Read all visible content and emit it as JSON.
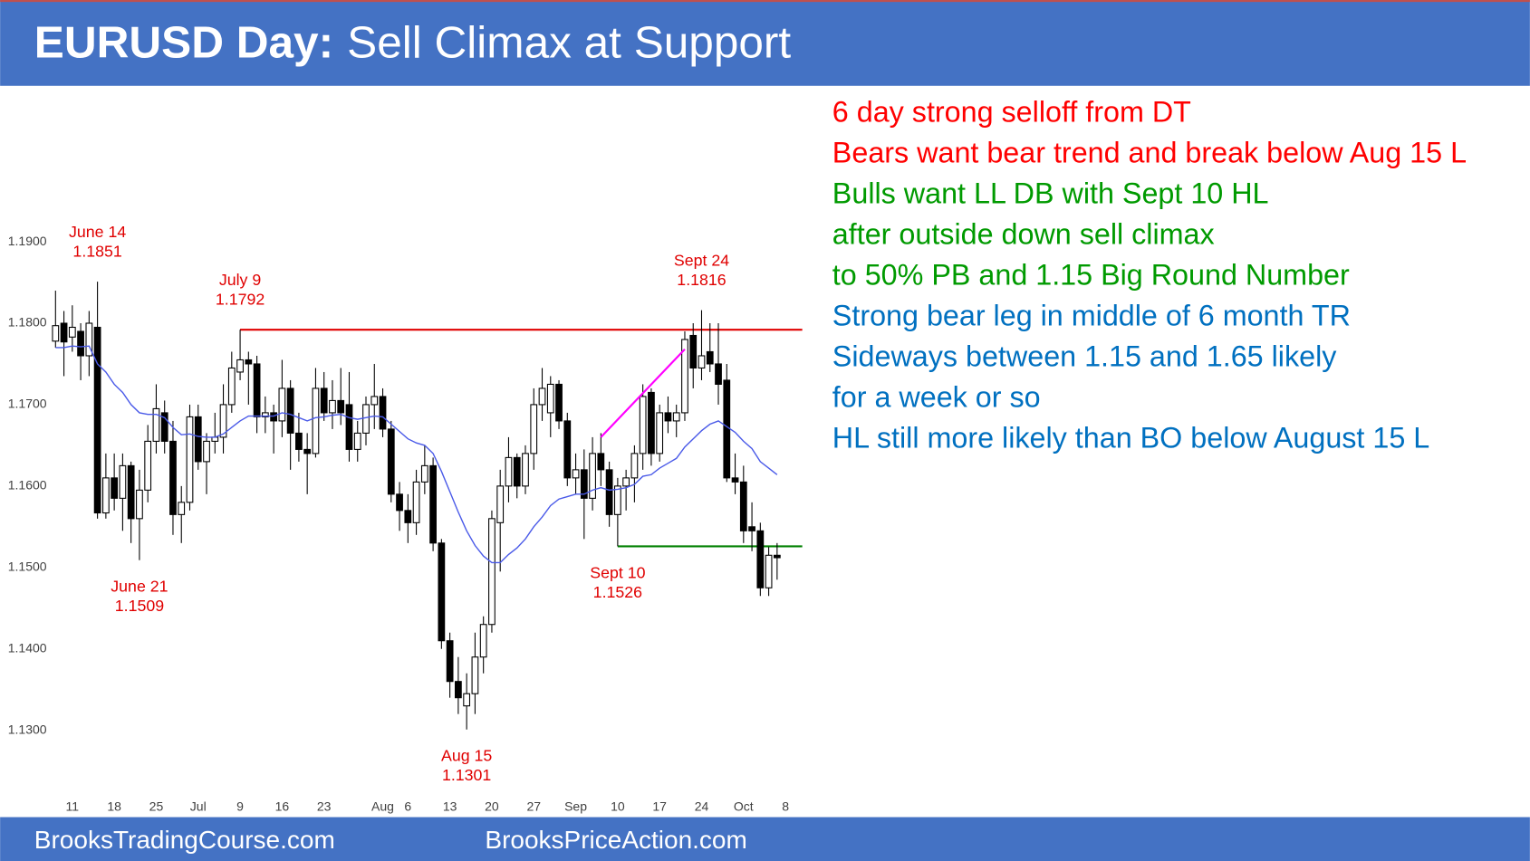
{
  "chart_data": {
    "type": "candlestick",
    "title_bold": "EURUSD Day:",
    "title": "Sell Climax at Support",
    "x": [
      0,
      1,
      2,
      3,
      4,
      5,
      6,
      7,
      8,
      9,
      10,
      11,
      12,
      13,
      14,
      15,
      16,
      17,
      18,
      19,
      20,
      21,
      22,
      23,
      24,
      25,
      26,
      27,
      28,
      29,
      30,
      31,
      32,
      33,
      34,
      35,
      36,
      37,
      38,
      39,
      40,
      41,
      42,
      43,
      44,
      45,
      46,
      47,
      48,
      49,
      50,
      51,
      52,
      53,
      54,
      55,
      56,
      57,
      58,
      59,
      60,
      61,
      62,
      63,
      64,
      65,
      66,
      67,
      68,
      69,
      70,
      71,
      72,
      73,
      74,
      75,
      76,
      77,
      78,
      79,
      80,
      81,
      82,
      83,
      84,
      85,
      86
    ],
    "open": [
      1.1778,
      1.18,
      1.1783,
      1.179,
      1.176,
      1.1795,
      1.1567,
      1.161,
      1.1585,
      1.1625,
      1.156,
      1.1595,
      1.1655,
      1.169,
      1.1655,
      1.1565,
      1.158,
      1.1685,
      1.163,
      1.1655,
      1.166,
      1.17,
      1.174,
      1.1755,
      1.175,
      1.1685,
      1.169,
      1.168,
      1.172,
      1.1665,
      1.1645,
      1.164,
      1.172,
      1.169,
      1.1705,
      1.17,
      1.1645,
      1.1665,
      1.17,
      1.171,
      1.167,
      1.159,
      1.157,
      1.1555,
      1.1605,
      1.1625,
      1.153,
      1.141,
      1.136,
      1.133,
      1.1345,
      1.139,
      1.143,
      1.1555,
      1.16,
      1.1635,
      1.16,
      1.164,
      1.17,
      1.169,
      1.1725,
      1.168,
      1.161,
      1.162,
      1.1585,
      1.164,
      1.162,
      1.1565,
      1.16,
      1.161,
      1.164,
      1.1715,
      1.164,
      1.169,
      1.168,
      1.169,
      1.1785,
      1.1745,
      1.1765,
      1.175,
      1.173,
      1.161,
      1.1605,
      1.155,
      1.1545,
      1.1475,
      1.1515
    ],
    "high": [
      1.184,
      1.1815,
      1.1822,
      1.18,
      1.1815,
      1.1851,
      1.164,
      1.164,
      1.164,
      1.163,
      1.162,
      1.1675,
      1.1725,
      1.1705,
      1.168,
      1.16,
      1.17,
      1.17,
      1.1665,
      1.169,
      1.1725,
      1.1765,
      1.1792,
      1.1765,
      1.176,
      1.171,
      1.17,
      1.1755,
      1.173,
      1.169,
      1.1665,
      1.1745,
      1.174,
      1.173,
      1.1745,
      1.174,
      1.168,
      1.171,
      1.175,
      1.172,
      1.168,
      1.1605,
      1.159,
      1.162,
      1.165,
      1.1635,
      1.1535,
      1.142,
      1.139,
      1.137,
      1.142,
      1.144,
      1.157,
      1.162,
      1.166,
      1.164,
      1.165,
      1.172,
      1.1745,
      1.1735,
      1.173,
      1.169,
      1.164,
      1.1645,
      1.166,
      1.1665,
      1.163,
      1.161,
      1.162,
      1.165,
      1.1725,
      1.172,
      1.17,
      1.171,
      1.17,
      1.179,
      1.18,
      1.1816,
      1.18,
      1.18,
      1.175,
      1.164,
      1.1625,
      1.158,
      1.1555,
      1.1525,
      1.153
    ],
    "low": [
      1.177,
      1.1735,
      1.1765,
      1.173,
      1.1735,
      1.156,
      1.156,
      1.157,
      1.1545,
      1.153,
      1.1509,
      1.158,
      1.164,
      1.164,
      1.154,
      1.153,
      1.157,
      1.162,
      1.159,
      1.164,
      1.164,
      1.169,
      1.173,
      1.17,
      1.1665,
      1.1665,
      1.164,
      1.166,
      1.162,
      1.163,
      1.159,
      1.1635,
      1.168,
      1.167,
      1.1675,
      1.163,
      1.163,
      1.165,
      1.167,
      1.166,
      1.158,
      1.1545,
      1.153,
      1.154,
      1.159,
      1.152,
      1.14,
      1.134,
      1.132,
      1.1301,
      1.132,
      1.137,
      1.142,
      1.1495,
      1.158,
      1.1585,
      1.159,
      1.162,
      1.168,
      1.166,
      1.167,
      1.16,
      1.159,
      1.1535,
      1.157,
      1.16,
      1.155,
      1.1526,
      1.157,
      1.158,
      1.162,
      1.1625,
      1.163,
      1.1665,
      1.166,
      1.168,
      1.172,
      1.173,
      1.174,
      1.17,
      1.1605,
      1.159,
      1.153,
      1.152,
      1.1465,
      1.1465,
      1.1485
    ],
    "close": [
      1.1797,
      1.1777,
      1.1795,
      1.176,
      1.18,
      1.1567,
      1.161,
      1.1585,
      1.1625,
      1.156,
      1.1595,
      1.1655,
      1.1695,
      1.1655,
      1.1565,
      1.158,
      1.1685,
      1.163,
      1.1655,
      1.166,
      1.17,
      1.1745,
      1.1755,
      1.175,
      1.1685,
      1.169,
      1.168,
      1.172,
      1.1665,
      1.1645,
      1.164,
      1.172,
      1.169,
      1.1705,
      1.169,
      1.1645,
      1.1665,
      1.17,
      1.171,
      1.167,
      1.159,
      1.157,
      1.1555,
      1.1605,
      1.1625,
      1.153,
      1.141,
      1.136,
      1.134,
      1.1345,
      1.139,
      1.143,
      1.156,
      1.16,
      1.1635,
      1.16,
      1.164,
      1.17,
      1.172,
      1.1725,
      1.168,
      1.161,
      1.162,
      1.1585,
      1.164,
      1.162,
      1.1565,
      1.16,
      1.161,
      1.164,
      1.171,
      1.164,
      1.169,
      1.168,
      1.169,
      1.178,
      1.1745,
      1.176,
      1.175,
      1.1725,
      1.161,
      1.1605,
      1.1545,
      1.1545,
      1.1475,
      1.1515,
      1.1512
    ],
    "up_color": "#ffffff",
    "down_color": "#000000",
    "series": [
      {
        "color": "#4a5ae8",
        "values": [
          1.177,
          1.177,
          1.1772,
          1.1771,
          1.1772,
          1.175,
          1.174,
          1.1725,
          1.1715,
          1.17,
          1.169,
          1.1688,
          1.1688,
          1.1684,
          1.1672,
          1.1663,
          1.1664,
          1.1661,
          1.166,
          1.166,
          1.1664,
          1.1672,
          1.168,
          1.1686,
          1.1686,
          1.1686,
          1.1686,
          1.169,
          1.1688,
          1.1684,
          1.168,
          1.1684,
          1.1685,
          1.1687,
          1.1688,
          1.1684,
          1.1682,
          1.1684,
          1.1686,
          1.1685,
          1.1676,
          1.1667,
          1.1658,
          1.1653,
          1.165,
          1.164,
          1.1618,
          1.1593,
          1.1568,
          1.1545,
          1.1527,
          1.1514,
          1.1506,
          1.1506,
          1.1516,
          1.1524,
          1.1535,
          1.155,
          1.1562,
          1.1576,
          1.1584,
          1.1587,
          1.159,
          1.159,
          1.1595,
          1.1598,
          1.1595,
          1.1596,
          1.1598,
          1.1602,
          1.1612,
          1.1614,
          1.1622,
          1.1628,
          1.1634,
          1.1648,
          1.1658,
          1.1668,
          1.1676,
          1.168,
          1.1673,
          1.1666,
          1.1655,
          1.1646,
          1.163,
          1.1622,
          1.1614
        ]
      }
    ],
    "trendline": {
      "color": "#ff00ff",
      "x": [
        65,
        75
      ],
      "values": [
        1.166,
        1.1768
      ]
    },
    "annotations": [
      {
        "date": "June 14",
        "value": 1.1851,
        "x": 5,
        "position": "above"
      },
      {
        "date": "June 21",
        "value": 1.1509,
        "x": 10,
        "position": "below"
      },
      {
        "date": "July 9",
        "value": 1.1792,
        "x": 22,
        "position": "above",
        "line_color": "#e00000"
      },
      {
        "date": "Aug 15",
        "value": 1.1301,
        "x": 49,
        "position": "below"
      },
      {
        "date": "Sept 10",
        "value": 1.1526,
        "x": 67,
        "position": "below",
        "line_color": "#008000"
      },
      {
        "date": "Sept 24",
        "value": 1.1816,
        "x": 77,
        "position": "above"
      }
    ],
    "xlim": [
      -2,
      89
    ],
    "ylim": [
      1.1225,
      1.2085
    ],
    "xticks": [
      {
        "value": 2,
        "label": "11"
      },
      {
        "value": 7,
        "label": "18"
      },
      {
        "value": 12,
        "label": "25"
      },
      {
        "value": 17,
        "label": "Jul"
      },
      {
        "value": 22,
        "label": "9"
      },
      {
        "value": 27,
        "label": "16"
      },
      {
        "value": 32,
        "label": "23"
      },
      {
        "value": 39,
        "label": "Aug"
      },
      {
        "value": 42,
        "label": "6"
      },
      {
        "value": 47,
        "label": "13"
      },
      {
        "value": 52,
        "label": "20"
      },
      {
        "value": 57,
        "label": "27"
      },
      {
        "value": 62,
        "label": "Sep"
      },
      {
        "value": 67,
        "label": "10"
      },
      {
        "value": 72,
        "label": "17"
      },
      {
        "value": 77,
        "label": "24"
      },
      {
        "value": 82,
        "label": "Oct"
      },
      {
        "value": 87,
        "label": "8"
      }
    ],
    "yticks": [
      {
        "value": 1.13,
        "label": "1.1300"
      },
      {
        "value": 1.14,
        "label": "1.1400"
      },
      {
        "value": 1.15,
        "label": "1.1500"
      },
      {
        "value": 1.16,
        "label": "1.1600"
      },
      {
        "value": 1.17,
        "label": "1.1700"
      },
      {
        "value": 1.18,
        "label": "1.1800"
      },
      {
        "value": 1.19,
        "label": "1.1900"
      }
    ]
  },
  "notes": [
    {
      "text": "6 day strong selloff from DT",
      "color": "#ff0000"
    },
    {
      "text": "Bears want bear trend and break below Aug 15 L",
      "color": "#ff0000"
    },
    {
      "text": "Bulls want LL DB with Sept 10 HL",
      "color": "#009a00"
    },
    {
      "text": "after outside down sell climax",
      "color": "#009a00"
    },
    {
      "text": "to 50% PB and 1.15 Big Round Number",
      "color": "#009a00"
    },
    {
      "text": "Strong bear leg in middle of 6 month TR",
      "color": "#0070c0"
    },
    {
      "text": "Sideways between 1.15 and 1.65 likely",
      "color": "#0070c0"
    },
    {
      "text": "for a week or so",
      "color": "#0070c0"
    },
    {
      "text": "HL still more likely than BO below August 15 L",
      "color": "#0070c0"
    }
  ],
  "footer": [
    "BrooksTradingCourse.com",
    "BrooksPriceAction.com"
  ]
}
